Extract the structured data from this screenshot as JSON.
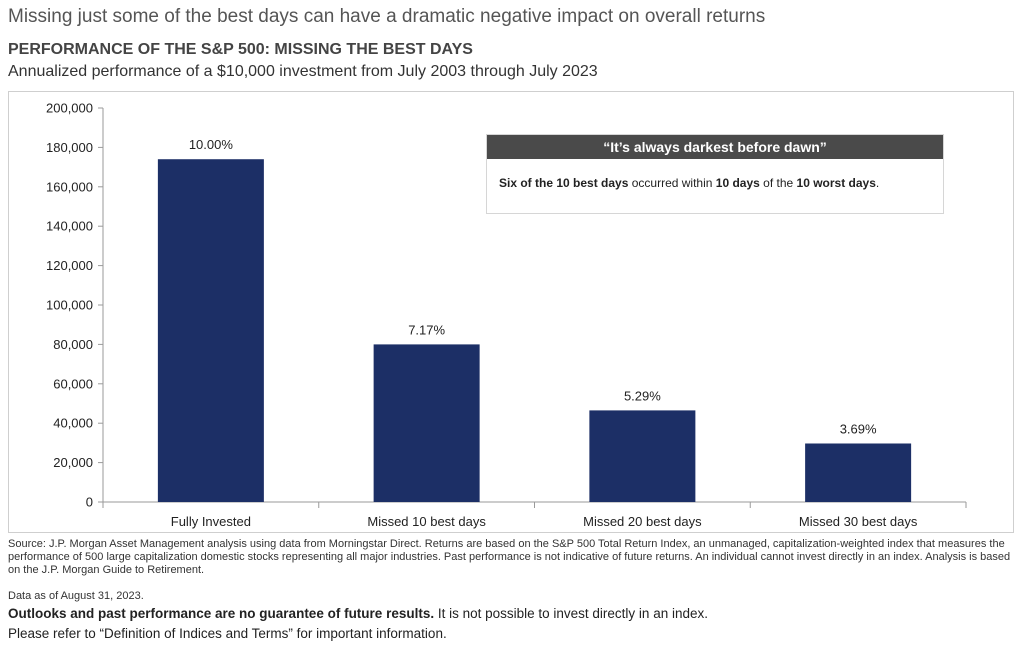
{
  "headline": "Missing just some of the best days can have a dramatic negative impact on overall returns",
  "callout": {
    "title": "“It’s always darkest before dawn”",
    "segments": [
      {
        "text": "Six of the ",
        "bold": true
      },
      {
        "text": "10 best days",
        "bold": true
      },
      {
        "text": " occurred within ",
        "bold": false
      },
      {
        "text": "10 days",
        "bold": true
      },
      {
        "text": " of the ",
        "bold": false
      },
      {
        "text": "10 worst days",
        "bold": true
      },
      {
        "text": ".",
        "bold": false
      }
    ]
  },
  "footer": {
    "source": "Source: J.P. Morgan Asset Management analysis using data from Morningstar Direct. Returns are based on the S&P 500 Total Return Index, an unmanaged, capitalization-weighted index that measures the performance of 500 large capitalization domestic stocks representing all major industries. Past performance is not indicative of future returns. An individual cannot invest directly in an index. Analysis is based on the J.P. Morgan Guide to Retirement.",
    "as_of": "Data as of August 31, 2023.",
    "disclaimer_bold": "Outlooks and past performance are no guarantee of future results.",
    "disclaimer_rest": " It is not possible to invest directly in an index.",
    "refer": "Please refer to “Definition of Indices and Terms” for important information."
  },
  "chart_data": {
    "type": "bar",
    "title": "PERFORMANCE OF THE S&P 500: MISSING THE BEST DAYS",
    "subtitle": "Annualized performance of a $10,000 investment from July 2003 through July 2023",
    "categories": [
      "Fully Invested",
      "Missed 10 best days",
      "Missed 20 best days",
      "Missed 30 best days"
    ],
    "values": [
      174000,
      80000,
      46500,
      29700
    ],
    "data_labels": [
      "10.00%",
      "7.17%",
      "5.29%",
      "3.69%"
    ],
    "ylim": [
      0,
      200000
    ],
    "yticks": [
      0,
      20000,
      40000,
      60000,
      80000,
      100000,
      120000,
      140000,
      160000,
      180000,
      200000
    ],
    "ytick_labels": [
      "0",
      "20,000",
      "40,000",
      "60,000",
      "80,000",
      "100,000",
      "120,000",
      "140,000",
      "160,000",
      "180,000",
      "200,000"
    ],
    "grid": false,
    "bar_color": "#1c2f66",
    "xlabel": "",
    "ylabel": ""
  }
}
